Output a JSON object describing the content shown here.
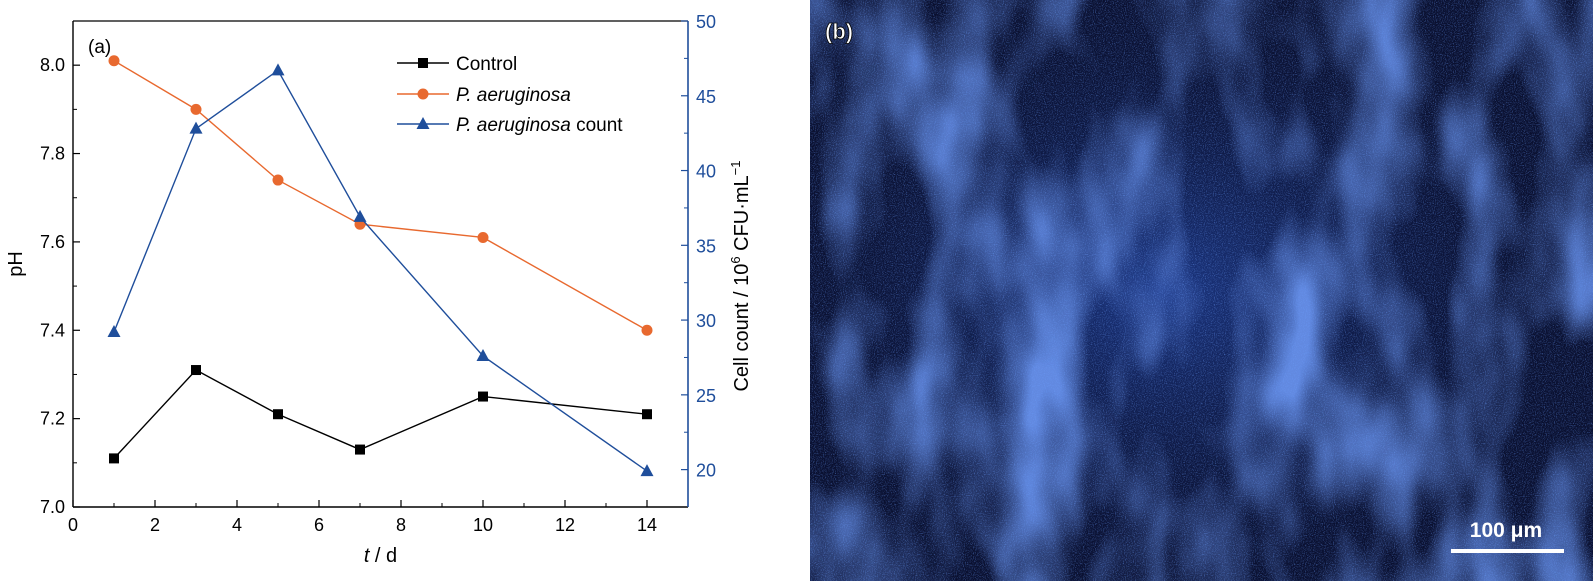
{
  "chart_data": [
    {
      "type": "line",
      "panel_label": "(a)",
      "xlabel_italic": "t",
      "xlabel_rest": " / d",
      "xlim": [
        0,
        15
      ],
      "x_ticks": [
        0,
        2,
        4,
        6,
        8,
        10,
        12,
        14
      ],
      "ylabel_left": "pH",
      "ylim_left": [
        7.0,
        8.1
      ],
      "y_ticks_left": [
        7.0,
        7.2,
        7.4,
        7.6,
        7.8,
        8.0
      ],
      "ylabel_right_prefix": "Cell count / 10",
      "ylabel_right_exp": "6",
      "ylabel_right_unit": " CFU·mL",
      "ylabel_right_unit_exp": "−1",
      "ylim_right": [
        17.5,
        50
      ],
      "y_ticks_right": [
        20,
        25,
        30,
        35,
        40,
        45,
        50
      ],
      "legend_position": "top-right",
      "series": [
        {
          "name": "Control",
          "name_italic": "",
          "name_plain": "Control",
          "axis": "left",
          "marker": "square",
          "color": "#000000",
          "x": [
            1,
            3,
            5,
            7,
            10,
            14
          ],
          "y": [
            7.11,
            7.31,
            7.21,
            7.13,
            7.25,
            7.21
          ]
        },
        {
          "name": "P. aeruginosa",
          "name_italic": "P. aeruginosa",
          "name_plain": "",
          "axis": "left",
          "marker": "circle",
          "color": "#e8692f",
          "x": [
            1,
            3,
            5,
            7,
            10,
            14
          ],
          "y": [
            8.01,
            7.9,
            7.74,
            7.64,
            7.61,
            7.4
          ]
        },
        {
          "name": "P. aeruginosa count",
          "name_italic": "P. aeruginosa",
          "name_plain": " count",
          "axis": "right",
          "marker": "triangle",
          "color": "#1f4e9b",
          "x": [
            1,
            3,
            5,
            7,
            10,
            14
          ],
          "y": [
            29.2,
            42.8,
            46.7,
            36.9,
            27.6,
            19.9
          ]
        }
      ]
    }
  ],
  "panel_b": {
    "label": "(b)",
    "scale_bar_label": "100 μm",
    "background_color": "#0a1030",
    "stain_color": "#3a6fe0"
  }
}
